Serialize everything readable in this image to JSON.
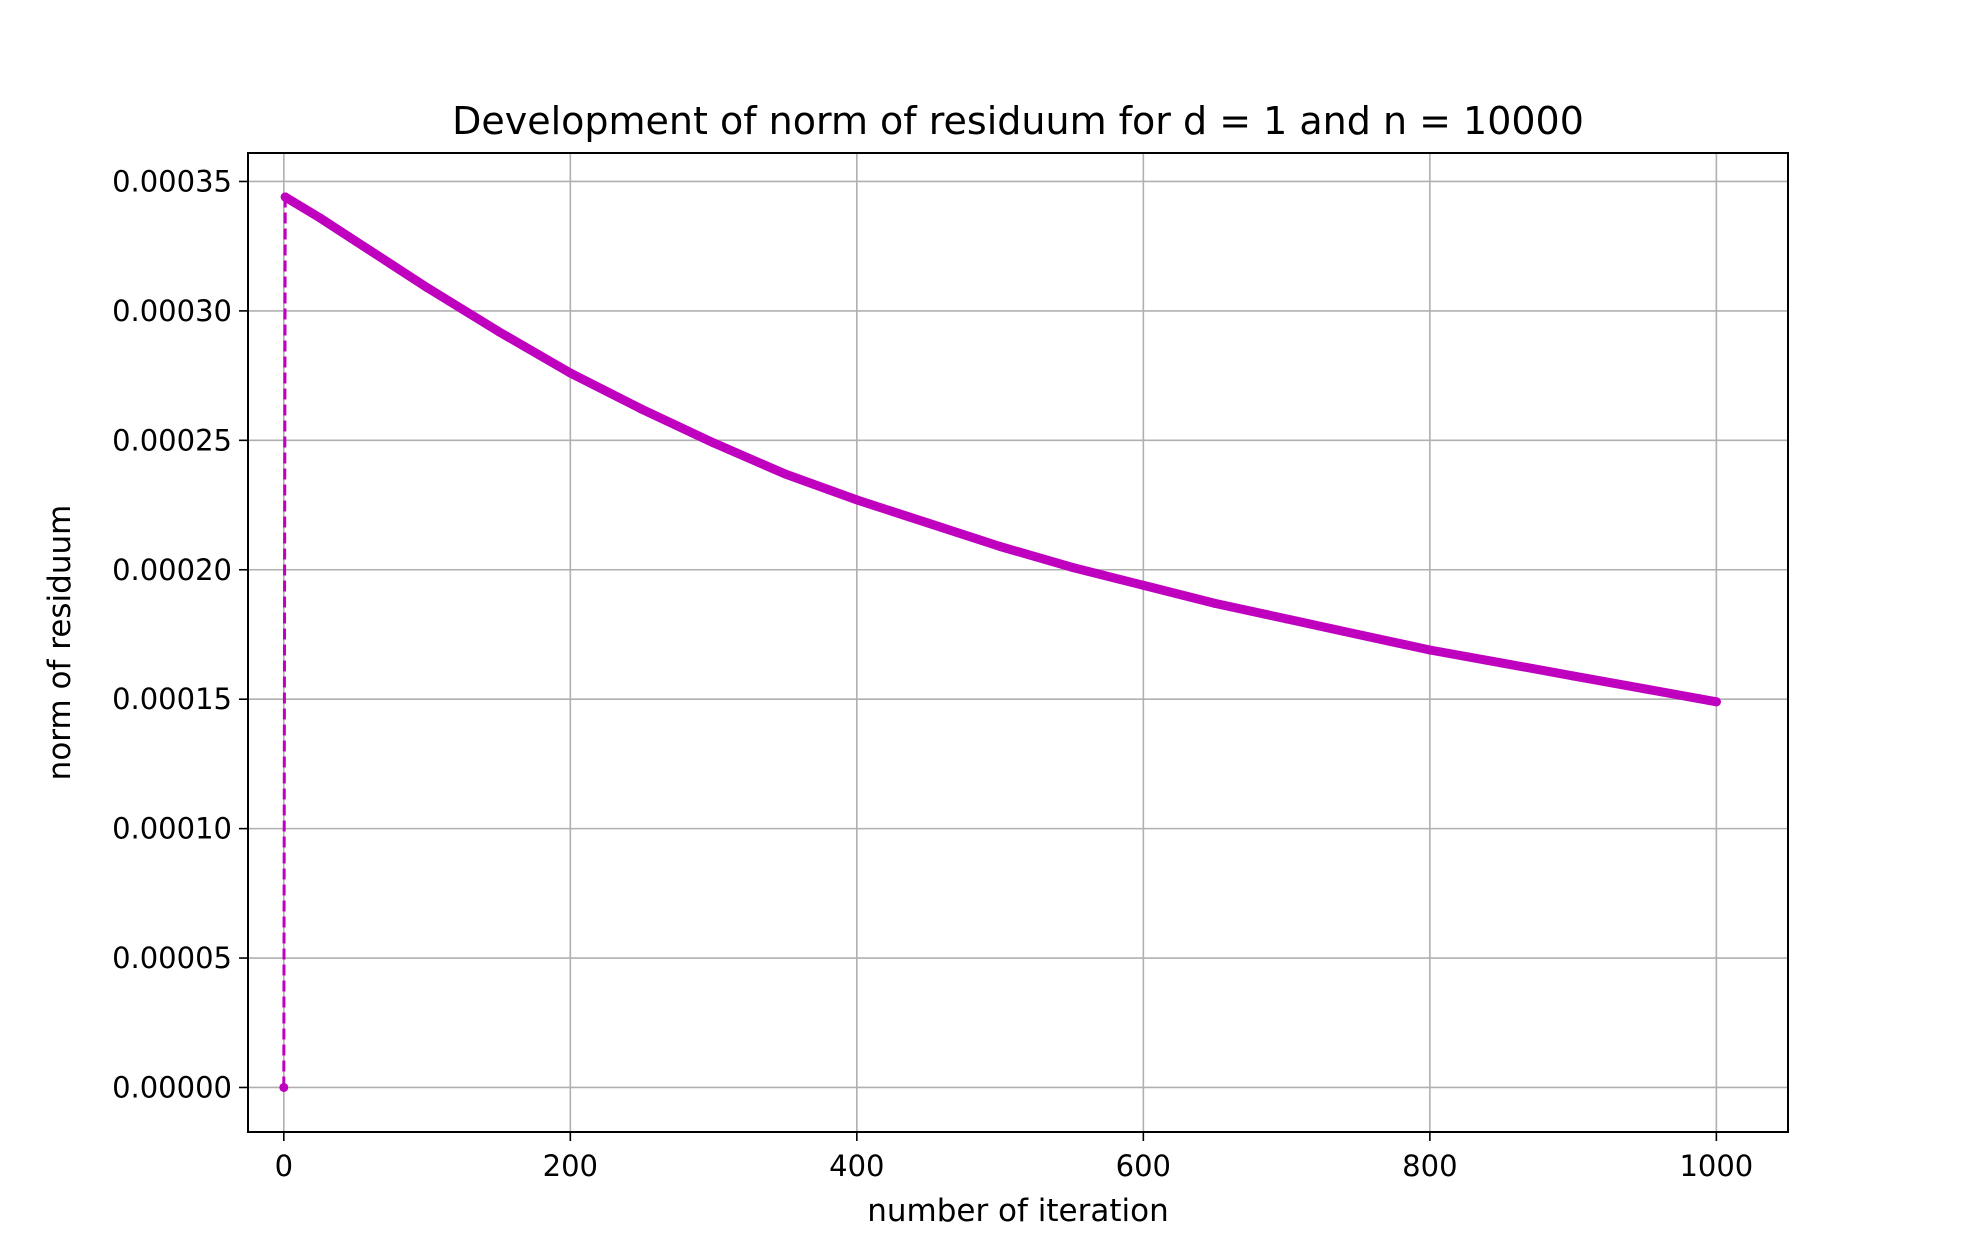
{
  "chart_data": {
    "type": "line",
    "title": "Development of norm of residuum for d = 1 and n = 10000",
    "xlabel": "number of iteration",
    "ylabel": "norm of residuum",
    "xlim": [
      -25,
      1050
    ],
    "ylim": [
      -1.72e-05,
      0.000361
    ],
    "grid": true,
    "legend": "none",
    "x_ticks": [
      0,
      200,
      400,
      600,
      800,
      1000
    ],
    "x_tick_labels": [
      "0",
      "200",
      "400",
      "600",
      "800",
      "1000"
    ],
    "y_ticks": [
      0,
      5e-05,
      0.0001,
      0.00015,
      0.0002,
      0.00025,
      0.0003,
      0.00035
    ],
    "y_tick_labels": [
      "0.00000",
      "0.00005",
      "0.00010",
      "0.00015",
      "0.00020",
      "0.00025",
      "0.00030",
      "0.00035"
    ],
    "colors": {
      "series": "#bf00bf",
      "grid": "#b0b0b0",
      "axes": "#000000"
    },
    "series": [
      {
        "line_style": "dashed",
        "marker": "dot",
        "x": [
          0,
          1,
          25,
          50,
          75,
          100,
          150,
          200,
          250,
          300,
          350,
          400,
          450,
          500,
          550,
          600,
          650,
          700,
          750,
          800,
          850,
          900,
          950,
          1000
        ],
        "y": [
          0,
          0.000344,
          0.000336,
          0.000327,
          0.000318,
          0.000309,
          0.000292,
          0.000276,
          0.000262,
          0.000249,
          0.000237,
          0.000227,
          0.000218,
          0.000209,
          0.000201,
          0.000194,
          0.000187,
          0.000181,
          0.000175,
          0.000169,
          0.000164,
          0.000159,
          0.000154,
          0.000149
        ]
      }
    ]
  }
}
